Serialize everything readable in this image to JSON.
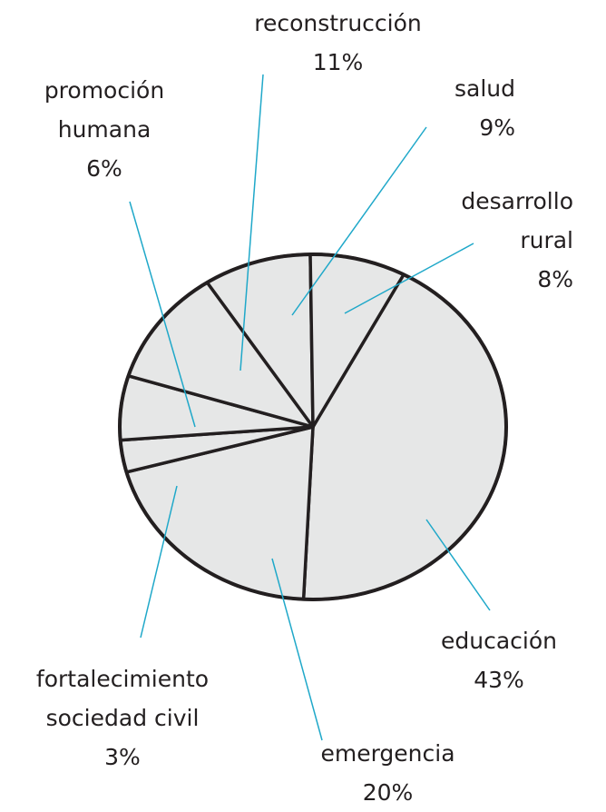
{
  "chart_data": {
    "type": "pie",
    "categories": [
      "educación",
      "emergencia",
      "fortalecimiento sociedad civil",
      "promoción humana",
      "reconstrucción",
      "salud",
      "desarrollo rural"
    ],
    "values": [
      43,
      20,
      3,
      6,
      11,
      9,
      8
    ],
    "value_labels": [
      "43%",
      "20%",
      "3%",
      "6%",
      "11%",
      "9%",
      "8%"
    ],
    "color": "#e6e7e7"
  }
}
